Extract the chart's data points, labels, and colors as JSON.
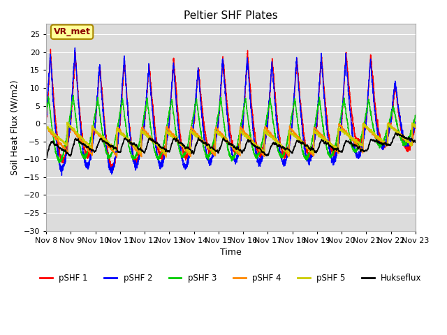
{
  "title": "Peltier SHF Plates",
  "xlabel": "Time",
  "ylabel": "Soil Heat Flux (W/m2)",
  "ylim": [
    -30,
    28
  ],
  "yticks": [
    -30,
    -25,
    -20,
    -15,
    -10,
    -5,
    0,
    5,
    10,
    15,
    20,
    25
  ],
  "xtick_labels": [
    "Nov 8",
    "Nov 9",
    "Nov 10",
    "Nov 11",
    "Nov 12",
    "Nov 13",
    "Nov 14",
    "Nov 15",
    "Nov 16",
    "Nov 17",
    "Nov 18",
    "Nov 19",
    "Nov 20",
    "Nov 21",
    "Nov 22",
    "Nov 23"
  ],
  "annotation_text": "VR_met",
  "colors": {
    "pSHF1": "#ff0000",
    "pSHF2": "#0000ff",
    "pSHF3": "#00cc00",
    "pSHF4": "#ff8800",
    "pSHF5": "#cccc00",
    "Hukseflux": "#000000"
  },
  "legend_labels": [
    "pSHF 1",
    "pSHF 2",
    "pSHF 3",
    "pSHF 4",
    "pSHF 5",
    "Hukseflux"
  ],
  "fig_bg": "#ffffff",
  "plot_bg": "#dcdcdc"
}
